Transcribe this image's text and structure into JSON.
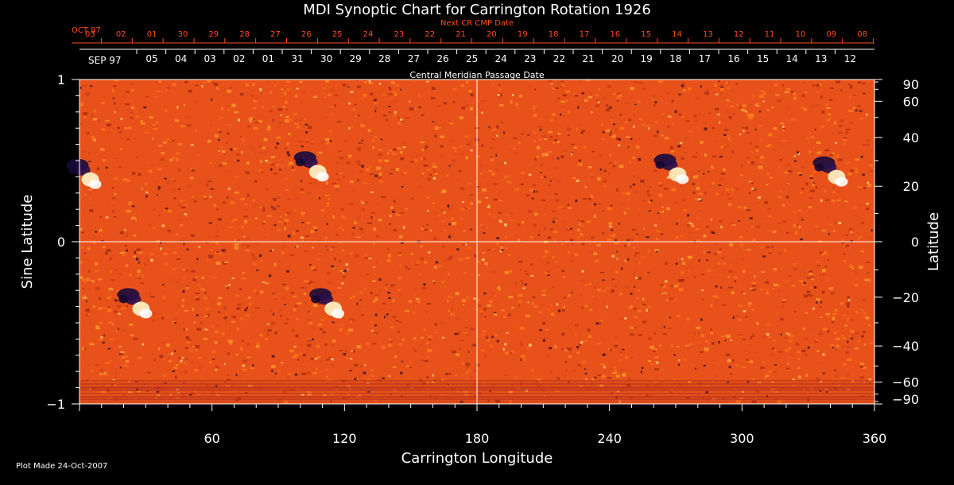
{
  "colors": {
    "background": "#000000",
    "text": "#ffffff",
    "next_cr": "#ff4d1a",
    "map_base": "#e8521a",
    "grid": "#ffffff"
  },
  "chart_data": {
    "type": "heatmap",
    "title": "MDI Synoptic Chart for Carrington Rotation 1926",
    "xlabel": "Carrington Longitude",
    "ylabel_left": "Sine Latitude",
    "ylabel_right": "Latitude",
    "top_label": "Central Meridian Passage Date",
    "next_label": "Next CR CMP Date",
    "footer": "Plot Made 24-Oct-2007",
    "xlim": [
      0,
      360
    ],
    "ylim": [
      -1,
      1
    ],
    "x_ticks": [
      "60",
      "120",
      "180",
      "240",
      "300",
      "360"
    ],
    "y_ticks_left": [
      "1",
      "0",
      "−1"
    ],
    "y_ticks_right": [
      "90",
      "60",
      "40",
      "20",
      "0",
      "−20",
      "−40",
      "−60",
      "−90"
    ],
    "current_month_label": "SEP 97",
    "current_dates": [
      "05",
      "04",
      "03",
      "02",
      "01",
      "31",
      "30",
      "29",
      "28",
      "27",
      "26",
      "25",
      "24",
      "23",
      "22",
      "21",
      "20",
      "19",
      "18",
      "17",
      "16",
      "15",
      "14",
      "13",
      "12"
    ],
    "next_month_label": "OCT 97",
    "next_dates": [
      "03",
      "02",
      "01",
      "30",
      "29",
      "28",
      "27",
      "26",
      "25",
      "24",
      "23",
      "22",
      "21",
      "20",
      "19",
      "18",
      "17",
      "16",
      "15",
      "14",
      "13",
      "12",
      "11",
      "10",
      "09",
      "08"
    ],
    "active_regions": [
      {
        "lon": 2,
        "lat": 25,
        "polarity": "mixed"
      },
      {
        "lon": 105,
        "lat": 28,
        "polarity": "mixed"
      },
      {
        "lon": 268,
        "lat": 27,
        "polarity": "mixed"
      },
      {
        "lon": 340,
        "lat": 26,
        "polarity": "mixed"
      },
      {
        "lon": 25,
        "lat": -22,
        "polarity": "mixed"
      },
      {
        "lon": 112,
        "lat": -22,
        "polarity": "mixed"
      }
    ]
  }
}
